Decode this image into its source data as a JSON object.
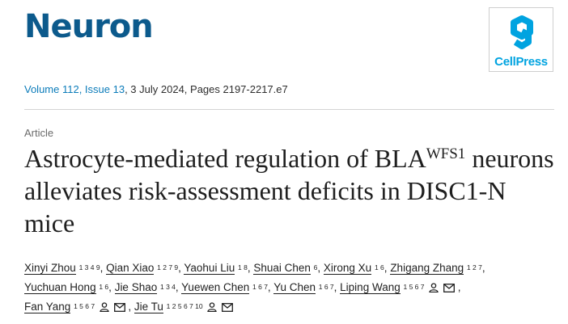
{
  "journal": {
    "name": "Neuron"
  },
  "publisher": {
    "logo_text": "CellPress"
  },
  "citation": {
    "volume_issue": "Volume 112, Issue 13",
    "rest": ", 3 July 2024, Pages 2197-2217.e7"
  },
  "article": {
    "type": "Article",
    "title_start": "Astrocyte-mediated regulation of BLA",
    "title_sup": "WFS1",
    "title_end": " neurons alleviates risk-assessment deficits in DISC1-N mice"
  },
  "authors": [
    {
      "name": "Xinyi Zhou",
      "aff": "1 3 4 9",
      "sep": ", "
    },
    {
      "name": "Qian Xiao",
      "aff": "1 2 7 9",
      "sep": ", "
    },
    {
      "name": "Yaohui Liu",
      "aff": "1 8",
      "sep": ", "
    },
    {
      "name": "Shuai Chen",
      "aff": "6",
      "sep": ", "
    },
    {
      "name": "Xirong Xu",
      "aff": "1 6",
      "sep": ", "
    },
    {
      "name": "Zhigang Zhang",
      "aff": "1 2 7",
      "sep": ", "
    },
    {
      "name": "Yuchuan Hong",
      "aff": "1 6",
      "sep": ", "
    },
    {
      "name": "Jie Shao",
      "aff": "1 3 4",
      "sep": ", "
    },
    {
      "name": "Yuewen Chen",
      "aff": "1 6 7",
      "sep": ", "
    },
    {
      "name": "Yu Chen",
      "aff": "1 6 7",
      "sep": ", "
    },
    {
      "name": "Liping Wang",
      "aff": "1 5 6 7",
      "sep": " ,"
    },
    {
      "name": "Fan Yang",
      "aff": "1 5 6 7",
      "sep": " ,"
    },
    {
      "name": "Jie Tu",
      "aff": "1 2 5 6 7 10",
      "sep": ""
    }
  ],
  "icons": {
    "person": "person-icon",
    "email": "email-icon"
  },
  "colors": {
    "brand": "#0c5a8c",
    "link": "#0c7cba",
    "cellpress": "#00a3e0"
  }
}
